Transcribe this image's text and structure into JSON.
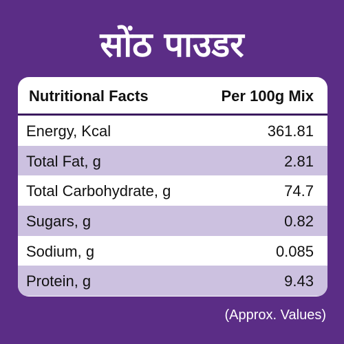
{
  "title": "सोंठ पाउडर",
  "table": {
    "header_left": "Nutritional Facts",
    "header_right": "Per 100g Mix",
    "rows": [
      {
        "label": "Energy, Kcal",
        "value": "361.81"
      },
      {
        "label": "Total Fat, g",
        "value": "2.81"
      },
      {
        "label": "Total Carbohydrate, g",
        "value": "74.7"
      },
      {
        "label": "Sugars, g",
        "value": "0.82"
      },
      {
        "label": "Sodium, g",
        "value": "0.085"
      },
      {
        "label": "Protein, g",
        "value": "9.43"
      }
    ]
  },
  "note": "(Approx. Values)",
  "colors": {
    "background": "#5b2d86",
    "card": "#ffffff",
    "alt_row": "#ccc1e0",
    "divider": "#3a1a5e"
  }
}
